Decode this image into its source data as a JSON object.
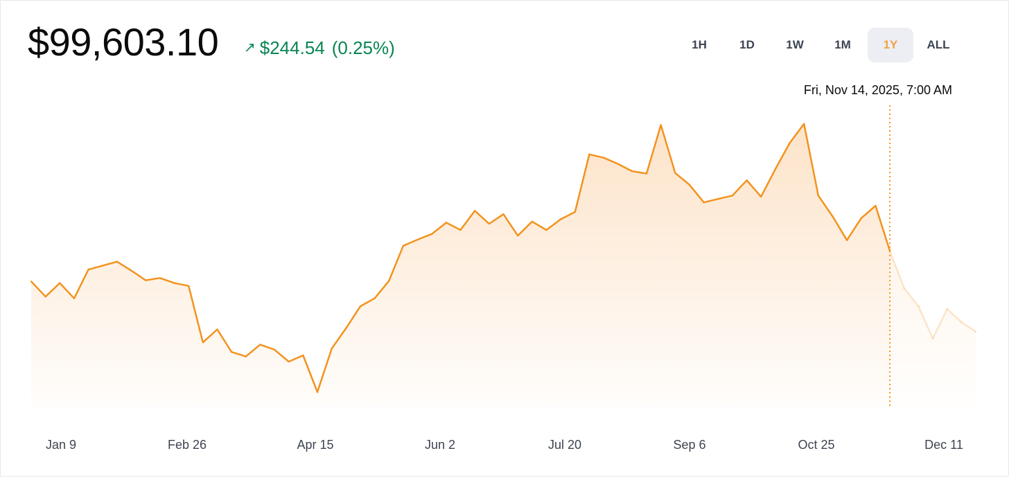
{
  "header": {
    "price": "$99,603.10",
    "change_arrow": "↗",
    "change_amount": "$244.54",
    "change_percent": "(0.25%)",
    "change_color": "#098551"
  },
  "ranges": [
    {
      "label": "1H",
      "active": false
    },
    {
      "label": "1D",
      "active": false
    },
    {
      "label": "1W",
      "active": false
    },
    {
      "label": "1M",
      "active": false
    },
    {
      "label": "1Y",
      "active": true
    },
    {
      "label": "ALL",
      "active": false
    }
  ],
  "hover": {
    "timestamp": "Fri, Nov 14, 2025, 7:00 AM"
  },
  "colors": {
    "line": "#f2931e",
    "accent": "#f2a145"
  },
  "chart_data": {
    "type": "area",
    "x_tick_labels": [
      "Jan 9",
      "Feb 26",
      "Apr 15",
      "Jun 2",
      "Jul 20",
      "Sep 6",
      "Oct 25",
      "Dec 11"
    ],
    "hover_x": "Nov 14",
    "x": [
      "Dec 29",
      "Jan 5",
      "Jan 9",
      "Jan 14",
      "Jan 20",
      "Jan 24",
      "Jan 30",
      "Feb 4",
      "Feb 10",
      "Feb 15",
      "Feb 21",
      "Feb 26",
      "Mar 2",
      "Mar 5",
      "Mar 10",
      "Mar 14",
      "Mar 20",
      "Mar 26",
      "Apr 1",
      "Apr 7",
      "Apr 10",
      "Apr 15",
      "Apr 20",
      "Apr 25",
      "May 1",
      "May 6",
      "May 12",
      "May 18",
      "May 22",
      "May 28",
      "Jun 2",
      "Jun 7",
      "Jun 12",
      "Jun 18",
      "Jun 23",
      "Jun 28",
      "Jul 3",
      "Jul 9",
      "Jul 14",
      "Jul 20",
      "Jul 24",
      "Jul 30",
      "Aug 4",
      "Aug 9",
      "Aug 14",
      "Aug 19",
      "Aug 24",
      "Aug 30",
      "Sep 6",
      "Sep 12",
      "Sep 18",
      "Sep 24",
      "Sep 30",
      "Oct 6",
      "Oct 12",
      "Oct 18",
      "Oct 25",
      "Oct 31",
      "Nov 5",
      "Nov 10",
      "Nov 14",
      "Nov 20",
      "Nov 26",
      "Dec 2",
      "Dec 6",
      "Dec 11",
      "Dec 15"
    ],
    "values": [
      96800,
      94100,
      96500,
      93800,
      98900,
      99600,
      100300,
      98700,
      97000,
      97400,
      96500,
      96000,
      86000,
      88300,
      84300,
      83500,
      85600,
      84700,
      82600,
      83700,
      77200,
      84900,
      88500,
      92400,
      93800,
      96900,
      103100,
      104200,
      105200,
      107200,
      105900,
      109300,
      107000,
      108700,
      104900,
      107400,
      105900,
      107800,
      109100,
      119300,
      118700,
      117600,
      116300,
      115900,
      124500,
      116000,
      113900,
      110800,
      111400,
      112000,
      114700,
      111800,
      116700,
      121300,
      124700,
      112000,
      108300,
      104100,
      108000,
      110200,
      102200,
      95600,
      92400,
      86700,
      91900,
      89600,
      87900
    ],
    "ylim": [
      74500,
      127000
    ]
  }
}
